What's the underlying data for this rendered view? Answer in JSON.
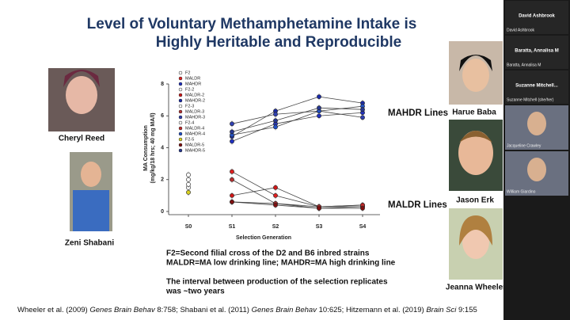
{
  "slide": {
    "title": [
      "Level of Voluntary Methamphetamine Intake is",
      "Highly Heritable and Reproducible"
    ],
    "people": [
      "Cheryl Reed",
      "Zeni Shabani",
      "Harue Baba",
      "Jason Erk",
      "Jeanna Wheeler"
    ],
    "caption": [
      "F2=Second filial cross of the D2 and B6 inbred strains",
      "MALDR=MA low drinking line;  MAHDR=MA high drinking line",
      "The interval between production of the selection replicates",
      "was ~two years"
    ],
    "references": [
      {
        "text": "Wheeler et al. (2009) ",
        "italic": false
      },
      {
        "text": "Genes Brain Behav",
        "italic": true
      },
      {
        "text": " 8:758; Shabani et al. (2011) ",
        "italic": false
      },
      {
        "text": "Genes Brain Behav",
        "italic": true
      },
      {
        "text": " 10:625; Hitzemann et al. (2019) ",
        "italic": false
      },
      {
        "text": "Brain Sci",
        "italic": true
      },
      {
        "text": " 9:155",
        "italic": false
      }
    ]
  },
  "participants": [
    {
      "name": "David Ashbrook",
      "label": "David Ashbrook"
    },
    {
      "name": "Baratta, Annalisa M",
      "label": "Baratta, Annalisa M"
    },
    {
      "name": "Suzanne Mitchell...",
      "label": "Suzanne Mitchell (she/her)"
    },
    {
      "label": "Jacqueline Crawley"
    },
    {
      "label": "William Giardino"
    }
  ],
  "chart_data": {
    "type": "line",
    "y_label": [
      "MA Consumption",
      "(mg/kg/18 hrs; 40 mg MA/l)"
    ],
    "x_label": "Selection Generation",
    "categories": [
      "S0",
      "S1",
      "S2",
      "S3",
      "S4"
    ],
    "ylim": [
      0,
      8
    ],
    "yticks": [
      0,
      2,
      4,
      6,
      8
    ],
    "annotations": [
      "MAHDR Lines",
      "MALDR Lines"
    ],
    "series": [
      {
        "name": "F2",
        "color": "#ffffff",
        "values": [
          2.3,
          null,
          null,
          null,
          null
        ]
      },
      {
        "name": "MALDR",
        "color": "#e02020",
        "values": [
          null,
          2.5,
          1.0,
          0.3,
          0.3
        ]
      },
      {
        "name": "MAHDR",
        "color": "#2030c0",
        "values": [
          null,
          4.4,
          5.5,
          6.0,
          6.2
        ]
      },
      {
        "name": "F2-2",
        "color": "#ffffff",
        "values": [
          2.0,
          null,
          null,
          null,
          null
        ]
      },
      {
        "name": "MALDR-2",
        "color": "#d01818",
        "values": [
          null,
          1.0,
          1.5,
          0.3,
          0.4
        ]
      },
      {
        "name": "MAHDR-2",
        "color": "#1a2aa8",
        "values": [
          null,
          4.7,
          6.3,
          7.2,
          6.8
        ]
      },
      {
        "name": "F2-3",
        "color": "#ffffff",
        "values": [
          1.5,
          null,
          null,
          null,
          null
        ]
      },
      {
        "name": "MALDR-3",
        "color": "#b83030",
        "values": [
          null,
          2.0,
          0.5,
          0.2,
          0.3
        ]
      },
      {
        "name": "MAHDR-3",
        "color": "#3040b0",
        "values": [
          null,
          5.5,
          6.1,
          6.3,
          5.9
        ]
      },
      {
        "name": "F2-4",
        "color": "#ffffff",
        "values": [
          1.7,
          null,
          null,
          null,
          null
        ]
      },
      {
        "name": "MALDR-4",
        "color": "#c02828",
        "values": [
          null,
          0.6,
          0.5,
          0.3,
          0.4
        ]
      },
      {
        "name": "MAHDR-4",
        "color": "#2050c8",
        "values": [
          null,
          4.8,
          5.3,
          6.3,
          6.6
        ]
      },
      {
        "name": "F2-5",
        "color": "#d8d020",
        "values": [
          1.2,
          null,
          null,
          null,
          null
        ]
      },
      {
        "name": "MALDR-5",
        "color": "#801010",
        "values": [
          null,
          0.6,
          0.4,
          0.2,
          0.2
        ]
      },
      {
        "name": "MAHDR-5",
        "color": "#283890",
        "values": [
          null,
          5.0,
          5.7,
          6.5,
          6.4
        ]
      }
    ]
  }
}
